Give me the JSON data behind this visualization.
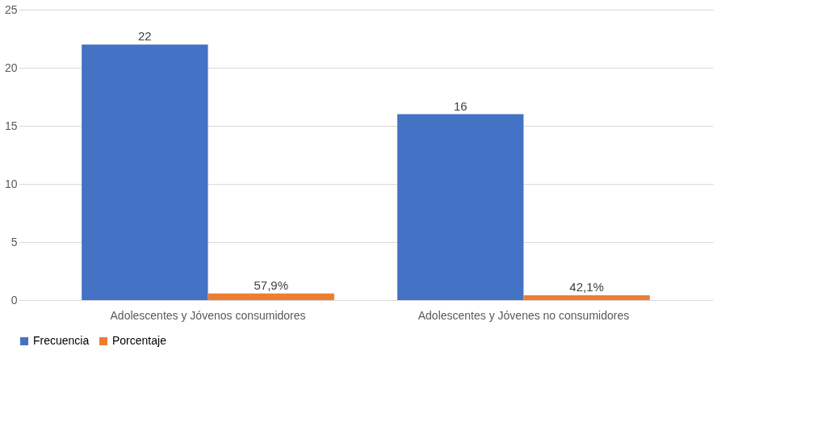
{
  "chart_data": {
    "type": "bar",
    "categories": [
      "Adolescentes y Jóvenos consumidores",
      "Adolescentes y Jóvenes no consumidores"
    ],
    "series": [
      {
        "name": "Frecuencia",
        "color": "#4472c4",
        "values": [
          22,
          16
        ],
        "value_labels": [
          "22",
          "16"
        ]
      },
      {
        "name": "Porcentaje",
        "color": "#ed7d31",
        "values": [
          0.579,
          0.421
        ],
        "value_labels": [
          "57,9%",
          "42,1%"
        ]
      }
    ],
    "ylim": [
      0,
      25
    ],
    "yticks": [
      0,
      5,
      10,
      15,
      20,
      25
    ],
    "grid": "y",
    "legend": "bottom"
  }
}
